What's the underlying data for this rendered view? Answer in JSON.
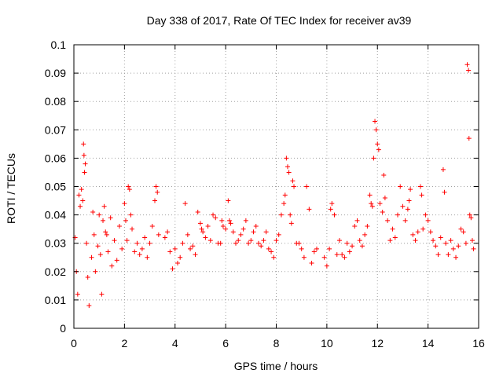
{
  "chart_data": {
    "type": "scatter",
    "title": "Day 338 of 2017, Rate Of TEC Index for receiver av39",
    "xlabel": "GPS time / hours",
    "ylabel": "ROTI / TECUs",
    "xlim": [
      0,
      16
    ],
    "ylim": [
      0,
      0.1
    ],
    "x_ticks": [
      0,
      2,
      4,
      6,
      8,
      10,
      12,
      14,
      16
    ],
    "x_tick_labels": [
      "0",
      "2",
      "4",
      "6",
      "8",
      "10",
      "12",
      "14",
      "16"
    ],
    "y_ticks": [
      0,
      0.01,
      0.02,
      0.03,
      0.04,
      0.05,
      0.06,
      0.07,
      0.08,
      0.09,
      0.1
    ],
    "y_tick_labels": [
      "0",
      "0.01",
      "0.02",
      "0.03",
      "0.04",
      "0.05",
      "0.06",
      "0.07",
      "0.08",
      "0.09",
      "0.1"
    ],
    "grid": true,
    "marker": "+",
    "series": [
      {
        "name": "ROTI",
        "color": "#ff0000",
        "points": [
          [
            0.05,
            0.032
          ],
          [
            0.1,
            0.02
          ],
          [
            0.15,
            0.012
          ],
          [
            0.2,
            0.047
          ],
          [
            0.25,
            0.043
          ],
          [
            0.3,
            0.049
          ],
          [
            0.35,
            0.045
          ],
          [
            0.38,
            0.065
          ],
          [
            0.4,
            0.061
          ],
          [
            0.42,
            0.055
          ],
          [
            0.45,
            0.058
          ],
          [
            0.5,
            0.03
          ],
          [
            0.55,
            0.018
          ],
          [
            0.6,
            0.008
          ],
          [
            0.7,
            0.025
          ],
          [
            0.75,
            0.041
          ],
          [
            0.8,
            0.033
          ],
          [
            0.85,
            0.02
          ],
          [
            0.95,
            0.029
          ],
          [
            1.0,
            0.04
          ],
          [
            1.05,
            0.026
          ],
          [
            1.1,
            0.012
          ],
          [
            1.15,
            0.038
          ],
          [
            1.2,
            0.043
          ],
          [
            1.25,
            0.034
          ],
          [
            1.3,
            0.033
          ],
          [
            1.35,
            0.027
          ],
          [
            1.45,
            0.039
          ],
          [
            1.5,
            0.022
          ],
          [
            1.6,
            0.031
          ],
          [
            1.7,
            0.024
          ],
          [
            1.8,
            0.036
          ],
          [
            1.9,
            0.028
          ],
          [
            2.0,
            0.044
          ],
          [
            2.05,
            0.038
          ],
          [
            2.1,
            0.031
          ],
          [
            2.15,
            0.05
          ],
          [
            2.2,
            0.049
          ],
          [
            2.25,
            0.04
          ],
          [
            2.3,
            0.035
          ],
          [
            2.4,
            0.027
          ],
          [
            2.5,
            0.03
          ],
          [
            2.6,
            0.026
          ],
          [
            2.7,
            0.028
          ],
          [
            2.8,
            0.032
          ],
          [
            2.9,
            0.025
          ],
          [
            3.0,
            0.03
          ],
          [
            3.1,
            0.036
          ],
          [
            3.2,
            0.045
          ],
          [
            3.25,
            0.05
          ],
          [
            3.3,
            0.048
          ],
          [
            3.35,
            0.033
          ],
          [
            3.6,
            0.032
          ],
          [
            3.7,
            0.034
          ],
          [
            3.8,
            0.027
          ],
          [
            3.9,
            0.021
          ],
          [
            4.0,
            0.028
          ],
          [
            4.1,
            0.023
          ],
          [
            4.2,
            0.025
          ],
          [
            4.3,
            0.03
          ],
          [
            4.4,
            0.044
          ],
          [
            4.5,
            0.033
          ],
          [
            4.6,
            0.028
          ],
          [
            4.7,
            0.029
          ],
          [
            4.8,
            0.026
          ],
          [
            4.9,
            0.041
          ],
          [
            5.0,
            0.037
          ],
          [
            5.05,
            0.035
          ],
          [
            5.1,
            0.034
          ],
          [
            5.2,
            0.032
          ],
          [
            5.3,
            0.036
          ],
          [
            5.4,
            0.031
          ],
          [
            5.5,
            0.04
          ],
          [
            5.6,
            0.039
          ],
          [
            5.7,
            0.03
          ],
          [
            5.8,
            0.03
          ],
          [
            5.85,
            0.038
          ],
          [
            5.9,
            0.036
          ],
          [
            6.0,
            0.035
          ],
          [
            6.1,
            0.045
          ],
          [
            6.15,
            0.038
          ],
          [
            6.2,
            0.037
          ],
          [
            6.3,
            0.034
          ],
          [
            6.4,
            0.03
          ],
          [
            6.5,
            0.031
          ],
          [
            6.6,
            0.033
          ],
          [
            6.7,
            0.035
          ],
          [
            6.8,
            0.038
          ],
          [
            6.9,
            0.03
          ],
          [
            7.0,
            0.031
          ],
          [
            7.1,
            0.034
          ],
          [
            7.2,
            0.036
          ],
          [
            7.3,
            0.03
          ],
          [
            7.4,
            0.029
          ],
          [
            7.5,
            0.031
          ],
          [
            7.6,
            0.034
          ],
          [
            7.7,
            0.028
          ],
          [
            7.8,
            0.027
          ],
          [
            7.9,
            0.025
          ],
          [
            8.0,
            0.031
          ],
          [
            8.1,
            0.033
          ],
          [
            8.2,
            0.04
          ],
          [
            8.3,
            0.044
          ],
          [
            8.35,
            0.047
          ],
          [
            8.4,
            0.06
          ],
          [
            8.45,
            0.057
          ],
          [
            8.5,
            0.055
          ],
          [
            8.55,
            0.04
          ],
          [
            8.6,
            0.037
          ],
          [
            8.65,
            0.052
          ],
          [
            8.7,
            0.05
          ],
          [
            8.8,
            0.03
          ],
          [
            8.9,
            0.03
          ],
          [
            9.0,
            0.028
          ],
          [
            9.1,
            0.025
          ],
          [
            9.2,
            0.05
          ],
          [
            9.3,
            0.042
          ],
          [
            9.4,
            0.023
          ],
          [
            9.5,
            0.027
          ],
          [
            9.6,
            0.028
          ],
          [
            9.9,
            0.025
          ],
          [
            10.0,
            0.022
          ],
          [
            10.1,
            0.028
          ],
          [
            10.15,
            0.042
          ],
          [
            10.2,
            0.044
          ],
          [
            10.3,
            0.04
          ],
          [
            10.4,
            0.026
          ],
          [
            10.5,
            0.031
          ],
          [
            10.6,
            0.026
          ],
          [
            10.7,
            0.025
          ],
          [
            10.8,
            0.03
          ],
          [
            10.9,
            0.027
          ],
          [
            11.0,
            0.029
          ],
          [
            11.1,
            0.036
          ],
          [
            11.2,
            0.038
          ],
          [
            11.3,
            0.031
          ],
          [
            11.4,
            0.029
          ],
          [
            11.5,
            0.033
          ],
          [
            11.6,
            0.036
          ],
          [
            11.7,
            0.047
          ],
          [
            11.75,
            0.044
          ],
          [
            11.8,
            0.043
          ],
          [
            11.85,
            0.06
          ],
          [
            11.9,
            0.073
          ],
          [
            11.95,
            0.07
          ],
          [
            12.0,
            0.065
          ],
          [
            12.05,
            0.063
          ],
          [
            12.1,
            0.044
          ],
          [
            12.2,
            0.041
          ],
          [
            12.25,
            0.054
          ],
          [
            12.3,
            0.046
          ],
          [
            12.4,
            0.038
          ],
          [
            12.5,
            0.031
          ],
          [
            12.6,
            0.035
          ],
          [
            12.7,
            0.032
          ],
          [
            12.8,
            0.04
          ],
          [
            12.9,
            0.05
          ],
          [
            13.0,
            0.043
          ],
          [
            13.1,
            0.038
          ],
          [
            13.2,
            0.042
          ],
          [
            13.25,
            0.045
          ],
          [
            13.3,
            0.049
          ],
          [
            13.4,
            0.033
          ],
          [
            13.5,
            0.031
          ],
          [
            13.6,
            0.034
          ],
          [
            13.7,
            0.05
          ],
          [
            13.75,
            0.047
          ],
          [
            13.8,
            0.035
          ],
          [
            13.9,
            0.04
          ],
          [
            14.0,
            0.038
          ],
          [
            14.1,
            0.034
          ],
          [
            14.2,
            0.031
          ],
          [
            14.3,
            0.029
          ],
          [
            14.4,
            0.026
          ],
          [
            14.5,
            0.032
          ],
          [
            14.6,
            0.056
          ],
          [
            14.65,
            0.048
          ],
          [
            14.7,
            0.03
          ],
          [
            14.8,
            0.026
          ],
          [
            14.9,
            0.031
          ],
          [
            15.0,
            0.028
          ],
          [
            15.1,
            0.025
          ],
          [
            15.2,
            0.029
          ],
          [
            15.3,
            0.035
          ],
          [
            15.4,
            0.034
          ],
          [
            15.5,
            0.03
          ],
          [
            15.55,
            0.093
          ],
          [
            15.6,
            0.091
          ],
          [
            15.62,
            0.067
          ],
          [
            15.65,
            0.04
          ],
          [
            15.7,
            0.039
          ],
          [
            15.75,
            0.031
          ],
          [
            15.8,
            0.028
          ]
        ]
      }
    ]
  }
}
